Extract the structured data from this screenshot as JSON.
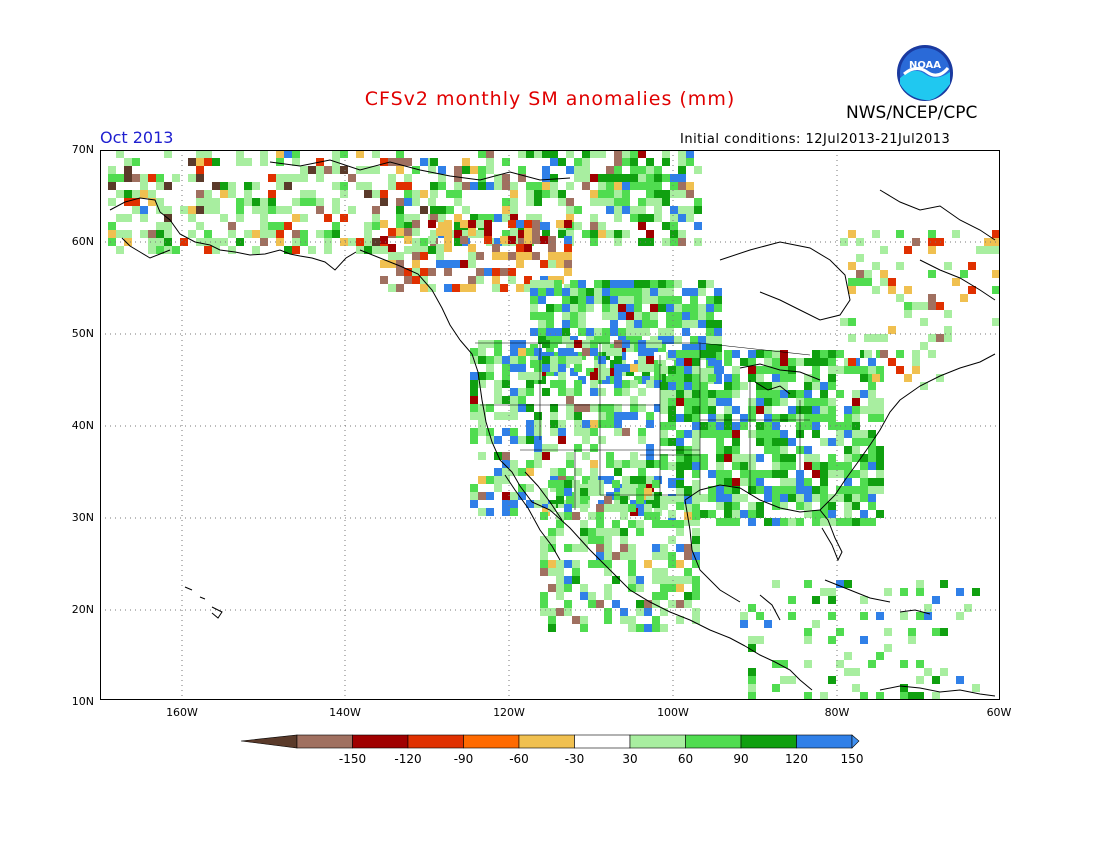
{
  "title": "CFSv2 monthly SM anomalies (mm)",
  "agency": "NWS/NCEP/CPC",
  "logo_text": "NOAA",
  "month_label": "Oct 2013",
  "initial_conditions": "Initial conditions: 12Jul2013-21Jul2013",
  "lat_ticks": [
    "70N",
    "60N",
    "50N",
    "40N",
    "30N",
    "20N",
    "10N"
  ],
  "lon_ticks": [
    "160W",
    "140W",
    "120W",
    "100W",
    "80W",
    "60W"
  ],
  "colorbar": {
    "labels": [
      "-150",
      "-120",
      "-90",
      "-60",
      "-30",
      "30",
      "60",
      "90",
      "120",
      "150"
    ],
    "colors": [
      "#5a3a2a",
      "#a07060",
      "#a00000",
      "#e03000",
      "#ff6a00",
      "#f0c050",
      "#ffffff",
      "#a8eea0",
      "#50dc50",
      "#10a010",
      "#3080e8",
      "#4090f0"
    ]
  },
  "colors": {
    "title": "#e00000",
    "month": "#2020d0",
    "land_line": "#000000"
  }
}
